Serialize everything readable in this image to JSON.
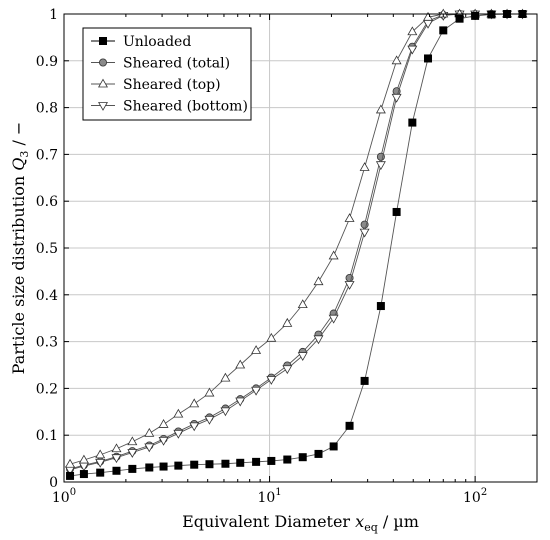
{
  "chart_data": {
    "type": "line",
    "xscale": "log",
    "xlim": [
      1,
      200
    ],
    "ylim": [
      0,
      1
    ],
    "xlabel": "Equivalent Diameter ",
    "xlabel_var": "x",
    "xlabel_sub": "eq",
    "xlabel_unit": " / µm",
    "ylabel": "Particle size distribution ",
    "ylabel_var": "Q",
    "ylabel_sub": "3",
    "ylabel_unit": " / −",
    "grid": true,
    "legend_position": "top-left",
    "x_ticks": [
      {
        "value": 1,
        "base": "10",
        "exp": "0"
      },
      {
        "value": 10,
        "base": "10",
        "exp": "1"
      },
      {
        "value": 100,
        "base": "10",
        "exp": "2"
      }
    ],
    "y_ticks": [
      {
        "value": 0,
        "label": "0"
      },
      {
        "value": 0.1,
        "label": "0.1"
      },
      {
        "value": 0.2,
        "label": "0.2"
      },
      {
        "value": 0.3,
        "label": "0.3"
      },
      {
        "value": 0.4,
        "label": "0.4"
      },
      {
        "value": 0.5,
        "label": "0.5"
      },
      {
        "value": 0.6,
        "label": "0.6"
      },
      {
        "value": 0.7,
        "label": "0.7"
      },
      {
        "value": 0.8,
        "label": "0.8"
      },
      {
        "value": 0.9,
        "label": "0.9"
      },
      {
        "value": 1,
        "label": "1"
      }
    ],
    "series": [
      {
        "name": "Unloaded",
        "marker": "square-filled",
        "color": "#000000",
        "x": [
          1.07,
          1.25,
          1.5,
          1.8,
          2.15,
          2.6,
          3.05,
          3.6,
          4.3,
          5.1,
          6.1,
          7.2,
          8.6,
          10.2,
          12.2,
          14.5,
          17.3,
          20.5,
          24.5,
          29,
          34.8,
          41.5,
          49.5,
          59,
          70,
          84,
          100,
          120,
          143,
          170
        ],
        "y": [
          0.013,
          0.017,
          0.02,
          0.024,
          0.028,
          0.031,
          0.033,
          0.035,
          0.037,
          0.038,
          0.039,
          0.041,
          0.043,
          0.045,
          0.048,
          0.053,
          0.06,
          0.076,
          0.12,
          0.216,
          0.376,
          0.577,
          0.768,
          0.905,
          0.965,
          0.99,
          0.996,
          0.999,
          1.0,
          1.0
        ]
      },
      {
        "name": "Sheared (total)",
        "marker": "circle-gray",
        "color": "#808080",
        "x": [
          1.07,
          1.25,
          1.5,
          1.8,
          2.15,
          2.6,
          3.05,
          3.6,
          4.3,
          5.1,
          6.1,
          7.2,
          8.6,
          10.2,
          12.2,
          14.5,
          17.3,
          20.5,
          24.5,
          29,
          34.8,
          41.5,
          49.5,
          59,
          70,
          84,
          100,
          120,
          143,
          170
        ],
        "y": [
          0.028,
          0.036,
          0.044,
          0.054,
          0.066,
          0.078,
          0.092,
          0.108,
          0.124,
          0.138,
          0.157,
          0.177,
          0.2,
          0.223,
          0.249,
          0.278,
          0.315,
          0.36,
          0.436,
          0.55,
          0.695,
          0.835,
          0.93,
          0.985,
          0.998,
          1.0,
          1.0,
          1.0,
          1.0,
          1.0
        ]
      },
      {
        "name": "Sheared (top)",
        "marker": "triangle-up-open",
        "color": "#555555",
        "x": [
          1.07,
          1.25,
          1.5,
          1.8,
          2.15,
          2.6,
          3.05,
          3.6,
          4.3,
          5.1,
          6.1,
          7.2,
          8.6,
          10.2,
          12.2,
          14.5,
          17.3,
          20.5,
          24.5,
          29,
          34.8,
          41.5,
          49.5,
          59,
          70,
          84,
          100,
          120,
          143,
          170
        ],
        "y": [
          0.038,
          0.047,
          0.058,
          0.071,
          0.086,
          0.104,
          0.123,
          0.145,
          0.167,
          0.19,
          0.222,
          0.25,
          0.281,
          0.307,
          0.339,
          0.379,
          0.428,
          0.483,
          0.563,
          0.672,
          0.795,
          0.9,
          0.962,
          0.993,
          1.0,
          1.0,
          1.0,
          1.0,
          1.0,
          1.0
        ]
      },
      {
        "name": "Sheared (bottom)",
        "marker": "triangle-down-open",
        "color": "#555555",
        "x": [
          1.07,
          1.25,
          1.5,
          1.8,
          2.15,
          2.6,
          3.05,
          3.6,
          4.3,
          5.1,
          6.1,
          7.2,
          8.6,
          10.2,
          12.2,
          14.5,
          17.3,
          20.5,
          24.5,
          29,
          34.8,
          41.5,
          49.5,
          59,
          70,
          84,
          100,
          120,
          143,
          170
        ],
        "y": [
          0.026,
          0.034,
          0.042,
          0.052,
          0.063,
          0.075,
          0.089,
          0.104,
          0.12,
          0.134,
          0.152,
          0.173,
          0.196,
          0.219,
          0.242,
          0.27,
          0.306,
          0.35,
          0.422,
          0.534,
          0.678,
          0.822,
          0.925,
          0.98,
          0.997,
          1.0,
          1.0,
          1.0,
          1.0,
          1.0
        ]
      }
    ]
  }
}
